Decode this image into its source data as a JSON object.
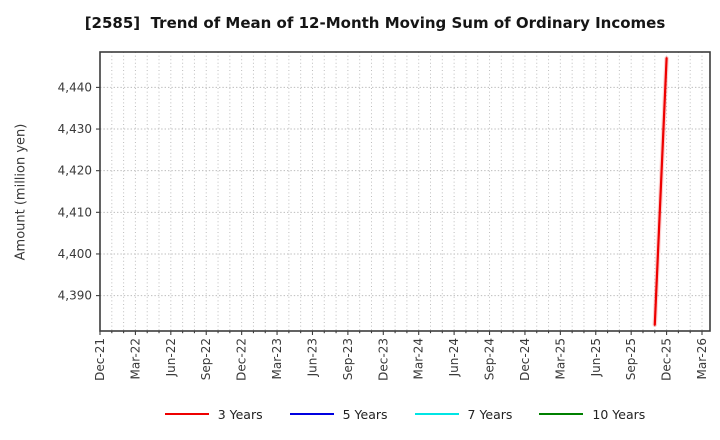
{
  "chart_data": {
    "type": "line",
    "title": "[2585]  Trend of Mean of 12-Month Moving Sum of Ordinary Incomes",
    "ylabel": "Amount (million yen)",
    "xlabel": "",
    "x_tick_labels": [
      "Dec-21",
      "Mar-22",
      "Jun-22",
      "Sep-22",
      "Dec-22",
      "Mar-23",
      "Jun-23",
      "Sep-23",
      "Dec-23",
      "Mar-24",
      "Jun-24",
      "Sep-24",
      "Dec-24",
      "Mar-25",
      "Jun-25",
      "Sep-25",
      "Dec-25",
      "Mar-26"
    ],
    "months_per_tick": 3,
    "total_months": 51,
    "y_ticks": [
      4390,
      4400,
      4410,
      4420,
      4430,
      4440
    ],
    "ylim": [
      4381.5,
      4448.5
    ],
    "grid": {
      "vertical": "every-month-dotted",
      "horizontal": "every-major-tick-dotted",
      "color": "#bdbdbd"
    },
    "legend_position": "bottom-center",
    "series": [
      {
        "name": "3 Years",
        "color": "#ee0000",
        "points": [
          {
            "x": "Nov-25",
            "month_index": 47,
            "value": 4383
          },
          {
            "x": "Dec-25",
            "month_index": 48,
            "value": 4447
          }
        ]
      },
      {
        "name": "5 Years",
        "color": "#0000e0",
        "points": []
      },
      {
        "name": "7 Years",
        "color": "#00e5e5",
        "points": []
      },
      {
        "name": "10 Years",
        "color": "#008000",
        "points": []
      }
    ],
    "colors": {
      "axis_border": "#3c3c3c",
      "tick_label": "#3a3a3a",
      "title_text": "#151515"
    }
  }
}
